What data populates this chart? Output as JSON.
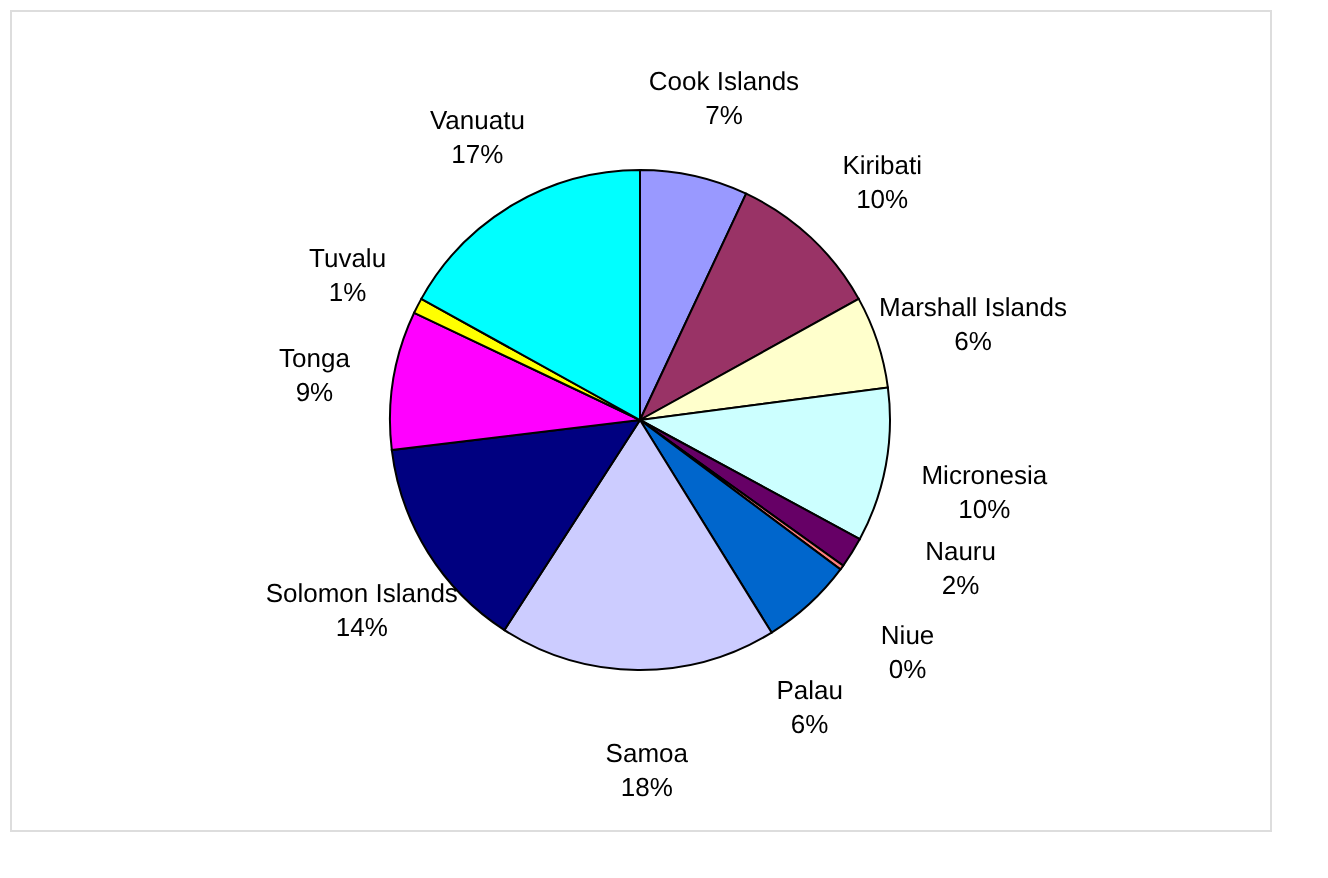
{
  "chart_data": {
    "type": "pie",
    "categories": [
      "Cook Islands",
      "Kiribati",
      "Marshall Islands",
      "Micronesia",
      "Nauru",
      "Niue",
      "Palau",
      "Samoa",
      "Solomon Islands",
      "Tonga",
      "Tuvalu",
      "Vanuatu"
    ],
    "values": [
      7,
      10,
      6,
      10,
      2,
      0.3,
      6,
      18,
      14,
      9,
      1,
      17
    ],
    "value_labels": [
      "7%",
      "10%",
      "6%",
      "10%",
      "2%",
      "0%",
      "6%",
      "18%",
      "14%",
      "9%",
      "1%",
      "17%"
    ],
    "colors": [
      "#9999ff",
      "#993366",
      "#ffffcc",
      "#ccffff",
      "#660066",
      "#ff8080",
      "#0066cc",
      "#ccccff",
      "#000080",
      "#ff00ff",
      "#ffff00",
      "#00ffff"
    ],
    "legend": false
  }
}
